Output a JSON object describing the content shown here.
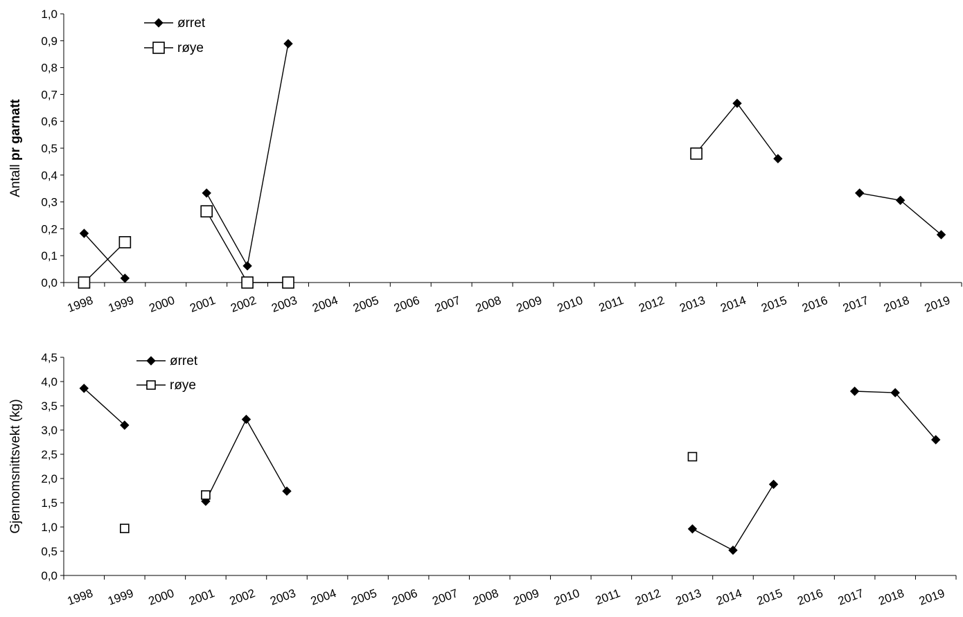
{
  "chart_data": [
    {
      "type": "line",
      "title": "",
      "xlabel": "",
      "ylabel_parts": [
        "Antall ",
        "pr garnatt"
      ],
      "categories": [
        "1998",
        "1999",
        "2000",
        "2001",
        "2002",
        "2003",
        "2004",
        "2005",
        "2006",
        "2007",
        "2008",
        "2009",
        "2010",
        "2011",
        "2012",
        "2013",
        "2014",
        "2015",
        "2016",
        "2017",
        "2018",
        "2019"
      ],
      "ylim": [
        0,
        1.0
      ],
      "yticks": [
        "0,0",
        "0,1",
        "0,2",
        "0,3",
        "0,4",
        "0,5",
        "0,6",
        "0,7",
        "0,8",
        "0,9",
        "1,0"
      ],
      "legend_position": "top-left",
      "grid": false,
      "series": [
        {
          "name": "ørret",
          "marker": "filled-diamond",
          "color": "#000000",
          "points": [
            {
              "x": 0.5,
              "y": 0.183
            },
            {
              "x": 1.5,
              "y": 0.016
            },
            {
              "x": 3.5,
              "y": 0.333
            },
            {
              "x": 4.5,
              "y": 0.062
            },
            {
              "x": 5.5,
              "y": 0.889
            },
            {
              "x": 15.5,
              "y": 0.483
            },
            {
              "x": 16.5,
              "y": 0.667
            },
            {
              "x": 17.5,
              "y": 0.461
            },
            {
              "x": 19.5,
              "y": 0.333
            },
            {
              "x": 20.5,
              "y": 0.306
            },
            {
              "x": 21.5,
              "y": 0.178
            }
          ],
          "segments": [
            [
              0,
              1
            ],
            [
              2,
              3
            ],
            [
              3,
              4
            ],
            [
              5,
              6
            ],
            [
              6,
              7
            ],
            [
              8,
              9
            ],
            [
              9,
              10
            ]
          ]
        },
        {
          "name": "røye",
          "marker": "open-square",
          "color": "#000000",
          "points": [
            {
              "x": 0.5,
              "y": 0.0
            },
            {
              "x": 1.5,
              "y": 0.15
            },
            {
              "x": 3.5,
              "y": 0.265
            },
            {
              "x": 4.5,
              "y": 0.0
            },
            {
              "x": 5.5,
              "y": 0.0
            },
            {
              "x": 15.5,
              "y": 0.48
            }
          ],
          "segments": [
            [
              0,
              1
            ],
            [
              2,
              3
            ],
            [
              3,
              4
            ]
          ]
        }
      ]
    },
    {
      "type": "line",
      "title": "",
      "xlabel": "",
      "ylabel_parts": [
        "Gjennomsnittsvekt (kg)"
      ],
      "categories": [
        "1998",
        "1999",
        "2000",
        "2001",
        "2002",
        "2003",
        "2004",
        "2005",
        "2006",
        "2007",
        "2008",
        "2009",
        "2010",
        "2011",
        "2012",
        "2013",
        "2014",
        "2015",
        "2016",
        "2017",
        "2018",
        "2019"
      ],
      "ylim": [
        0,
        4.5
      ],
      "yticks": [
        "0,0",
        "0,5",
        "1,0",
        "1,5",
        "2,0",
        "2,5",
        "3,0",
        "3,5",
        "4,0",
        "4,5"
      ],
      "legend_position": "top-left",
      "grid": false,
      "series": [
        {
          "name": "ørret",
          "marker": "filled-diamond",
          "color": "#000000",
          "points": [
            {
              "x": 0.5,
              "y": 3.86
            },
            {
              "x": 1.5,
              "y": 3.1
            },
            {
              "x": 3.5,
              "y": 1.53
            },
            {
              "x": 4.5,
              "y": 3.22
            },
            {
              "x": 5.5,
              "y": 1.74
            },
            {
              "x": 15.5,
              "y": 0.96
            },
            {
              "x": 16.5,
              "y": 0.52
            },
            {
              "x": 17.5,
              "y": 1.88
            },
            {
              "x": 19.5,
              "y": 3.8
            },
            {
              "x": 20.5,
              "y": 3.77
            },
            {
              "x": 21.5,
              "y": 2.8
            }
          ],
          "segments": [
            [
              0,
              1
            ],
            [
              2,
              3
            ],
            [
              3,
              4
            ],
            [
              5,
              6
            ],
            [
              6,
              7
            ],
            [
              8,
              9
            ],
            [
              9,
              10
            ]
          ]
        },
        {
          "name": "røye",
          "marker": "open-square",
          "color": "#000000",
          "points": [
            {
              "x": 1.5,
              "y": 0.97
            },
            {
              "x": 3.5,
              "y": 1.66
            },
            {
              "x": 15.5,
              "y": 2.45
            }
          ],
          "segments": []
        }
      ]
    }
  ]
}
